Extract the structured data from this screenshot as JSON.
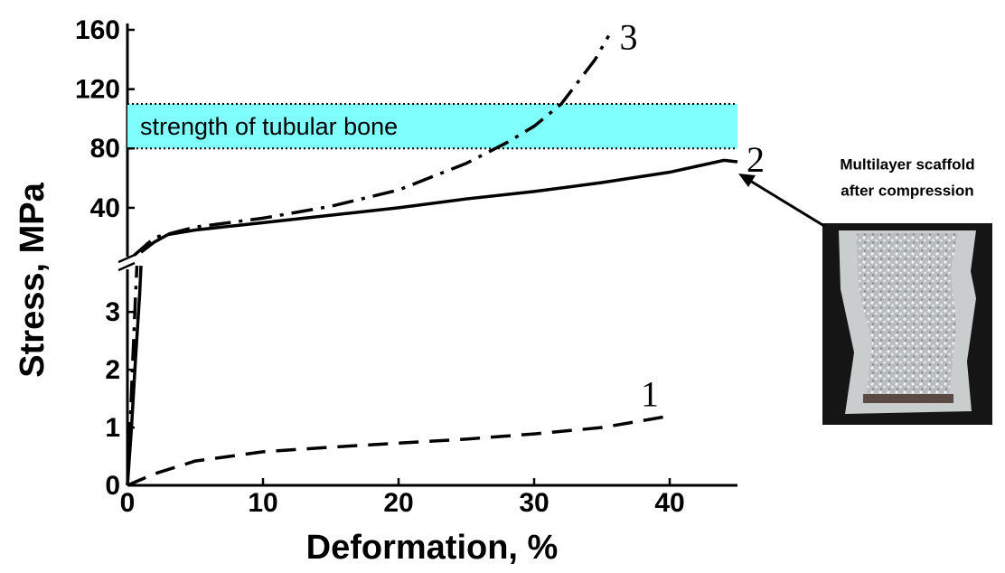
{
  "chart_data": [
    {
      "type": "line",
      "ylabel": "Stress, MPa",
      "xlim": [
        0,
        45
      ],
      "ylim": [
        4,
        160
      ],
      "yticks": [
        40,
        80,
        120,
        160
      ],
      "band": {
        "text": "strength of tubular bone",
        "y0": 80,
        "y1": 110,
        "color": "#80ffff"
      },
      "series": [
        {
          "name": "3",
          "color": "#000000",
          "dash": "dashdot",
          "x": [
            0.5,
            2,
            5,
            10,
            15,
            20,
            25,
            28,
            30,
            32,
            33,
            34.5,
            35.5
          ],
          "values": [
            8,
            20,
            27,
            33,
            41,
            52,
            70,
            84,
            95,
            110,
            122,
            140,
            156
          ]
        },
        {
          "name": "2",
          "color": "#000000",
          "dash": "solid",
          "x": [
            1,
            2,
            3,
            5,
            8,
            10,
            15,
            20,
            25,
            30,
            35,
            40,
            44,
            45
          ],
          "values": [
            10,
            17,
            22,
            25,
            28,
            30,
            35,
            40,
            46,
            51,
            57,
            64,
            72,
            71
          ]
        }
      ]
    },
    {
      "type": "line",
      "xlabel": "Deformation, %",
      "xlim": [
        0,
        45
      ],
      "ylim": [
        0,
        3.8
      ],
      "xticks": [
        0,
        10,
        20,
        30,
        40
      ],
      "yticks": [
        0,
        1,
        2,
        3
      ],
      "series": [
        {
          "name": "1",
          "color": "#000000",
          "dash": "dashed",
          "x": [
            0,
            2,
            5,
            10,
            15,
            20,
            25,
            30,
            35,
            40
          ],
          "values": [
            0,
            0.2,
            0.42,
            0.58,
            0.66,
            0.73,
            0.8,
            0.89,
            1.0,
            1.2
          ]
        },
        {
          "color": "#000000",
          "dash": "solid",
          "x": [
            0,
            0.3,
            0.6,
            0.9,
            1
          ],
          "values": [
            0,
            1.0,
            2.2,
            3.3,
            3.8
          ]
        },
        {
          "color": "#000000",
          "dash": "dashdot",
          "x": [
            0,
            0.2,
            0.4,
            0.6,
            0.7
          ],
          "values": [
            0,
            1.0,
            2.2,
            3.3,
            3.8
          ]
        }
      ]
    }
  ],
  "inset": {
    "caption": [
      "Multilayer scaffold",
      "after compression"
    ]
  }
}
